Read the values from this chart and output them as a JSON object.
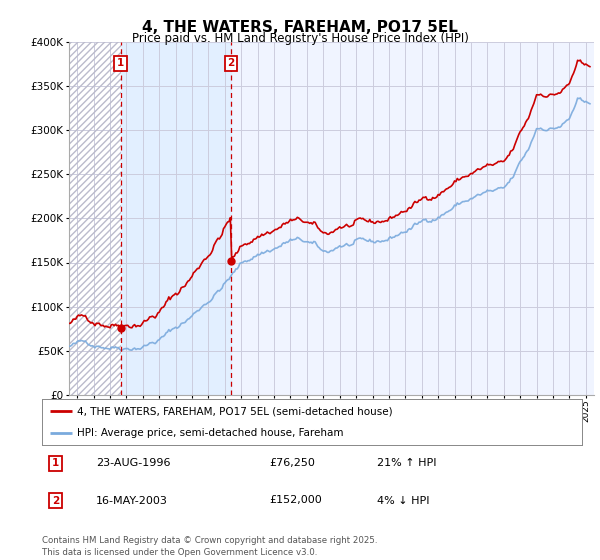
{
  "title": "4, THE WATERS, FAREHAM, PO17 5EL",
  "subtitle": "Price paid vs. HM Land Registry's House Price Index (HPI)",
  "legend_label_red": "4, THE WATERS, FAREHAM, PO17 5EL (semi-detached house)",
  "legend_label_blue": "HPI: Average price, semi-detached house, Fareham",
  "annotation1_date": "23-AUG-1996",
  "annotation1_price": "£76,250",
  "annotation1_hpi": "21% ↑ HPI",
  "annotation1_year": 1996.64,
  "annotation1_value": 76250,
  "annotation2_date": "16-MAY-2003",
  "annotation2_price": "£152,000",
  "annotation2_hpi": "4% ↓ HPI",
  "annotation2_year": 2003.37,
  "annotation2_value": 152000,
  "footer": "Contains HM Land Registry data © Crown copyright and database right 2025.\nThis data is licensed under the Open Government Licence v3.0.",
  "ylim": [
    0,
    400000
  ],
  "yticks": [
    0,
    50000,
    100000,
    150000,
    200000,
    250000,
    300000,
    350000,
    400000
  ],
  "xlim_start": 1993.5,
  "xlim_end": 2025.5,
  "hatch_end_year": 1996.64,
  "shade_start_year": 1996.64,
  "shade_end_year": 2003.37,
  "red_color": "#cc0000",
  "blue_color": "#7aaadd",
  "shade_color": "#ddeeff",
  "hatch_color": "#bbbbcc",
  "grid_color": "#ccccdd",
  "background_color": "#ffffff",
  "plot_bg_color": "#f0f4ff"
}
